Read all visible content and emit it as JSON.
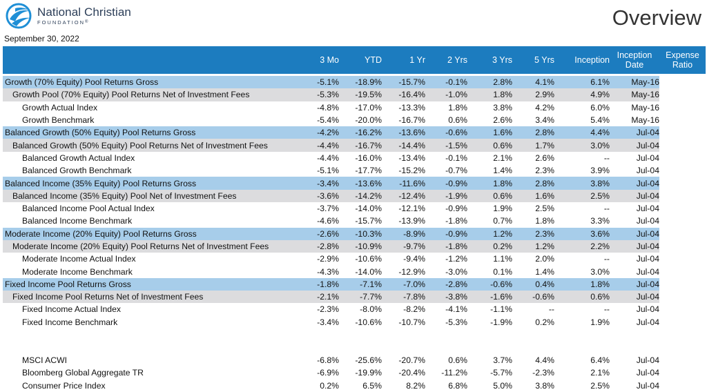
{
  "header": {
    "logo_name": "National Christian",
    "logo_sub": "FOUNDATION",
    "logo_mark": "reg",
    "title": "Overview",
    "date": "September 30, 2022"
  },
  "columns": [
    "",
    "3 Mo",
    "YTD",
    "1 Yr",
    "2 Yrs",
    "3 Yrs",
    "5 Yrs",
    "Inception",
    "Inception Date",
    "Expense Ratio"
  ],
  "rows": [
    {
      "type": "gross",
      "cells": [
        "Growth (70% Equity) Pool Returns Gross",
        "-5.1%",
        "-18.9%",
        "-15.7%",
        "-0.1%",
        "2.8%",
        "4.1%",
        "6.1%",
        "May-16",
        ""
      ]
    },
    {
      "type": "net",
      "cells": [
        "Growth Pool (70% Equity) Pool Returns Net of Investment Fees",
        "-5.3%",
        "-19.5%",
        "-16.4%",
        "-1.0%",
        "1.8%",
        "2.9%",
        "4.9%",
        "May-16",
        ""
      ]
    },
    {
      "type": "index",
      "cells": [
        "Growth Actual Index",
        "-4.8%",
        "-17.0%",
        "-13.3%",
        "1.8%",
        "3.8%",
        "4.2%",
        "6.0%",
        "May-16",
        ""
      ]
    },
    {
      "type": "index",
      "cells": [
        "Growth Benchmark",
        "-5.4%",
        "-20.0%",
        "-16.7%",
        "0.6%",
        "2.6%",
        "3.4%",
        "5.4%",
        "May-16",
        ""
      ]
    },
    {
      "type": "gross",
      "cells": [
        "Balanced Growth (50% Equity) Pool Returns Gross",
        "-4.2%",
        "-16.2%",
        "-13.6%",
        "-0.6%",
        "1.6%",
        "2.8%",
        "4.4%",
        "Jul-04",
        ""
      ]
    },
    {
      "type": "net",
      "cells": [
        "Balanced Growth (50% Equity) Pool Returns Net of Investment Fees",
        "-4.4%",
        "-16.7%",
        "-14.4%",
        "-1.5%",
        "0.6%",
        "1.7%",
        "3.0%",
        "Jul-04",
        ""
      ]
    },
    {
      "type": "index",
      "cells": [
        "Balanced Growth Actual Index",
        "-4.4%",
        "-16.0%",
        "-13.4%",
        "-0.1%",
        "2.1%",
        "2.6%",
        "--",
        "Jul-04",
        ""
      ]
    },
    {
      "type": "index",
      "cells": [
        "Balanced Growth Benchmark",
        "-5.1%",
        "-17.7%",
        "-15.2%",
        "-0.7%",
        "1.4%",
        "2.3%",
        "3.9%",
        "Jul-04",
        ""
      ]
    },
    {
      "type": "gross",
      "cells": [
        "Balanced Income (35% Equity) Pool Returns Gross",
        "-3.4%",
        "-13.6%",
        "-11.6%",
        "-0.9%",
        "1.8%",
        "2.8%",
        "3.8%",
        "Jul-04",
        ""
      ]
    },
    {
      "type": "net",
      "cells": [
        "Balanced Income (35% Equity) Pool Net of Investment Fees",
        "-3.6%",
        "-14.2%",
        "-12.4%",
        "-1.9%",
        "0.6%",
        "1.6%",
        "2.5%",
        "Jul-04",
        ""
      ]
    },
    {
      "type": "index",
      "cells": [
        "Balanced Income Pool Actual Index",
        "-3.7%",
        "-14.0%",
        "-12.1%",
        "-0.9%",
        "1.9%",
        "2.5%",
        "--",
        "Jul-04",
        ""
      ]
    },
    {
      "type": "index",
      "cells": [
        "Balanced Income Benchmark",
        "-4.6%",
        "-15.7%",
        "-13.9%",
        "-1.8%",
        "0.7%",
        "1.8%",
        "3.3%",
        "Jul-04",
        ""
      ]
    },
    {
      "type": "gross",
      "cells": [
        "Moderate Income (20% Equity) Pool Returns Gross",
        "-2.6%",
        "-10.3%",
        "-8.9%",
        "-0.9%",
        "1.2%",
        "2.3%",
        "3.6%",
        "Jul-04",
        ""
      ]
    },
    {
      "type": "net",
      "cells": [
        "Moderate Income (20% Equity) Pool Returns Net of Investment Fees",
        "-2.8%",
        "-10.9%",
        "-9.7%",
        "-1.8%",
        "0.2%",
        "1.2%",
        "2.2%",
        "Jul-04",
        ""
      ]
    },
    {
      "type": "index",
      "cells": [
        "Moderate Income Actual Index",
        "-2.9%",
        "-10.6%",
        "-9.4%",
        "-1.2%",
        "1.1%",
        "2.0%",
        "--",
        "Jul-04",
        ""
      ]
    },
    {
      "type": "index",
      "cells": [
        "Moderate Income Benchmark",
        "-4.3%",
        "-14.0%",
        "-12.9%",
        "-3.0%",
        "0.1%",
        "1.4%",
        "3.0%",
        "Jul-04",
        ""
      ]
    },
    {
      "type": "gross",
      "cells": [
        "Fixed Income Pool Returns Gross",
        "-1.8%",
        "-7.1%",
        "-7.0%",
        "-2.8%",
        "-0.6%",
        "0.4%",
        "1.8%",
        "Jul-04",
        ""
      ]
    },
    {
      "type": "net",
      "cells": [
        "Fixed Income Pool Returns Net of Investment Fees",
        "-2.1%",
        "-7.7%",
        "-7.8%",
        "-3.8%",
        "-1.6%",
        "-0.6%",
        "0.6%",
        "Jul-04",
        ""
      ]
    },
    {
      "type": "index",
      "cells": [
        "Fixed Income Actual Index",
        "-2.3%",
        "-8.0%",
        "-8.2%",
        "-4.1%",
        "-1.1%",
        "--",
        "--",
        "Jul-04",
        ""
      ]
    },
    {
      "type": "index",
      "cells": [
        "Fixed Income Benchmark",
        "-3.4%",
        "-10.6%",
        "-10.7%",
        "-5.3%",
        "-1.9%",
        "0.2%",
        "1.9%",
        "Jul-04",
        ""
      ]
    },
    {
      "type": "blank",
      "cells": []
    },
    {
      "type": "blank2",
      "cells": []
    },
    {
      "type": "other",
      "cells": [
        "MSCI ACWI",
        "-6.8%",
        "-25.6%",
        "-20.7%",
        "0.6%",
        "3.7%",
        "4.4%",
        "6.4%",
        "Jul-04",
        ""
      ]
    },
    {
      "type": "other",
      "cells": [
        "Bloomberg Global Aggregate TR",
        "-6.9%",
        "-19.9%",
        "-20.4%",
        "-11.2%",
        "-5.7%",
        "-2.3%",
        "2.1%",
        "Jul-04",
        ""
      ]
    },
    {
      "type": "other",
      "cells": [
        "Consumer Price Index",
        "0.2%",
        "6.5%",
        "8.2%",
        "6.8%",
        "5.0%",
        "3.8%",
        "2.5%",
        "Jul-04",
        ""
      ]
    }
  ]
}
